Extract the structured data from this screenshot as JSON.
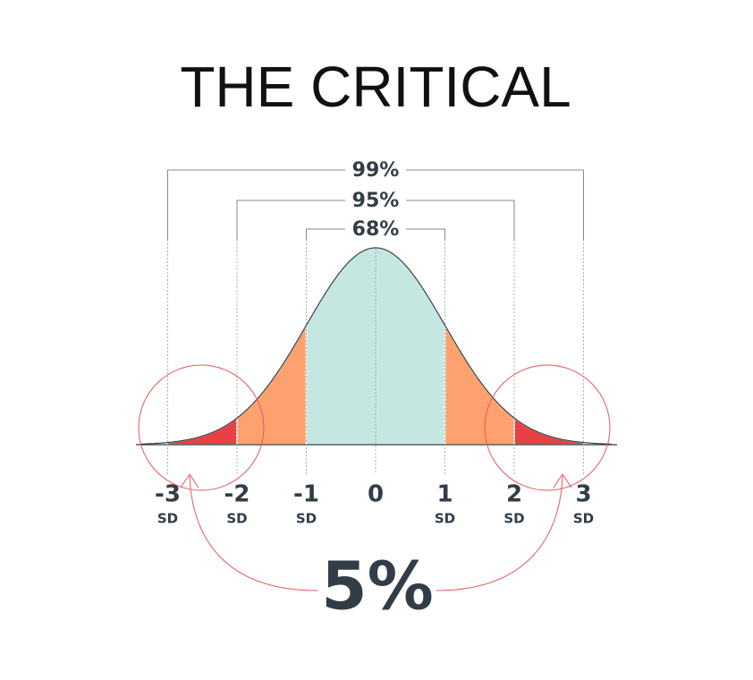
{
  "title": "THE CRITICAL",
  "brackets": [
    {
      "label": "99%"
    },
    {
      "label": "95%"
    },
    {
      "label": "68%"
    }
  ],
  "axis": [
    {
      "number": "-3",
      "unit": "SD"
    },
    {
      "number": "-2",
      "unit": "SD"
    },
    {
      "number": "-1",
      "unit": "SD"
    },
    {
      "number": "0"
    },
    {
      "number": "1",
      "unit": "SD"
    },
    {
      "number": "2",
      "unit": "SD"
    },
    {
      "number": "3",
      "unit": "SD"
    }
  ],
  "callout": "5%"
}
